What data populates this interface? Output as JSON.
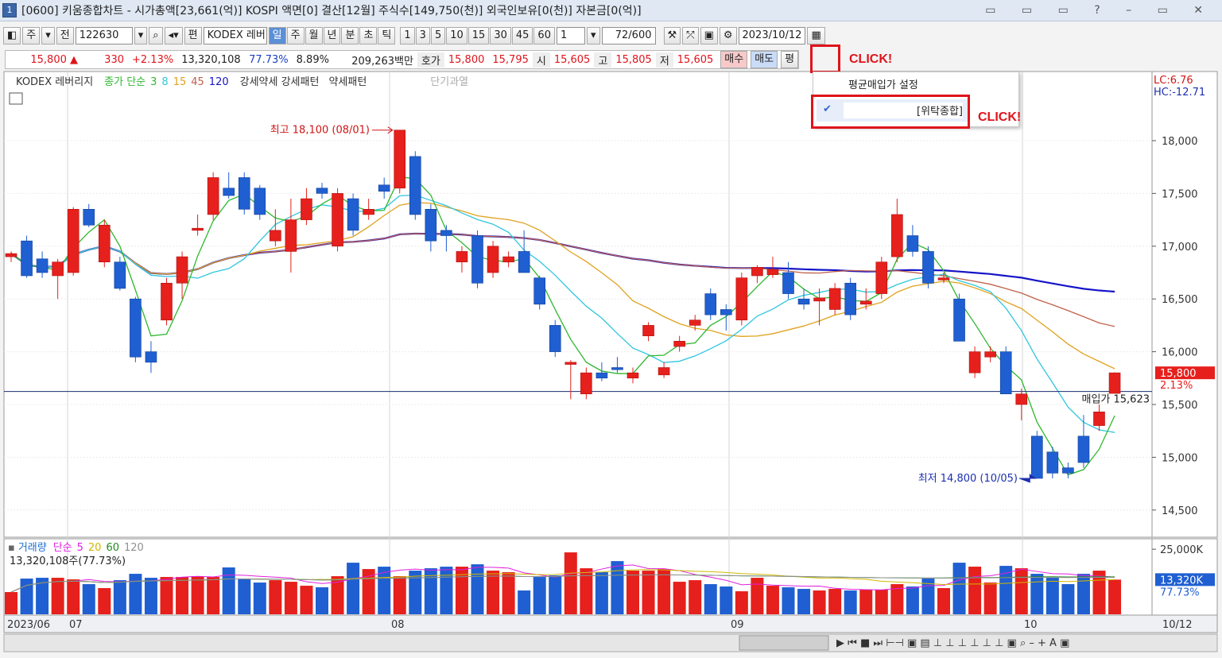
{
  "title_bar": {
    "badge": "1",
    "title": "[0600] 키움종합차트 - 시가총액[23,661(억)] KOSPI 액면[0] 결산[12월] 주식수[149,750(천)] 외국인보유[0(천)] 자본금[0(억)]"
  },
  "toolbar": {
    "period_type": "주",
    "mode": "전",
    "code": "122630",
    "fund_label": "편",
    "name": "KODEX 레버",
    "periods": [
      "일",
      "주",
      "월",
      "년",
      "분",
      "초",
      "틱"
    ],
    "minutes": [
      "1",
      "3",
      "5",
      "10",
      "15",
      "30",
      "45",
      "60"
    ],
    "multiplier": "1",
    "count": "72/600",
    "date": "2023/10/12"
  },
  "quote_bar": {
    "price": "15,800 ▲",
    "change": "330",
    "change_pct": "+2.13%",
    "volume": "13,320,108",
    "volume_ratio": "77.73%",
    "turnover": "8.89%",
    "amount": "209,263백만",
    "ask_label": "호가",
    "ask": "15,800",
    "bid": "15,795",
    "open_label": "시",
    "open": "15,605",
    "high_label": "고",
    "high": "15,805",
    "low_label": "저",
    "low": "15,605",
    "buy": "매수",
    "sell": "매도",
    "avg": "평"
  },
  "popup": {
    "title": "평균매입가 설정",
    "account": "[위탁종합]"
  },
  "annotations": {
    "click_1": "CLICK!",
    "click_2": "CLICK!"
  },
  "price_chart": {
    "type": "candlestick",
    "name": "KODEX 레버리지",
    "ma_label": "종가 단순",
    "ma": [
      {
        "period": 3,
        "color": "#2db82d"
      },
      {
        "period": 8,
        "color": "#2fc6de"
      },
      {
        "period": 15,
        "color": "#e0a21e"
      },
      {
        "period": 45,
        "color": "#c0604a"
      },
      {
        "period": 120,
        "color": "#1414c8"
      }
    ],
    "pattern_1": "강세약세 강세패턴",
    "pattern_2": "약세패턴",
    "pattern_3": "단기과열",
    "up_color": "#e6201c",
    "down_color": "#1f5fd1",
    "candles": [
      [
        16900,
        16950,
        16850,
        16930
      ],
      [
        17050,
        17100,
        16700,
        16720
      ],
      [
        16880,
        16950,
        16700,
        16750
      ],
      [
        16720,
        16880,
        16500,
        16850
      ],
      [
        16750,
        17370,
        16720,
        17350
      ],
      [
        17350,
        17400,
        17180,
        17200
      ],
      [
        16850,
        17250,
        16800,
        17200
      ],
      [
        16850,
        16900,
        16580,
        16600
      ],
      [
        16500,
        16520,
        15900,
        15950
      ],
      [
        16000,
        16100,
        15800,
        15900
      ],
      [
        16300,
        16700,
        16250,
        16650
      ],
      [
        16650,
        16950,
        16500,
        16900
      ],
      [
        17150,
        17300,
        17100,
        17170
      ],
      [
        17300,
        17700,
        17250,
        17650
      ],
      [
        17550,
        17700,
        17450,
        17480
      ],
      [
        17650,
        17700,
        17300,
        17350
      ],
      [
        17550,
        17580,
        17250,
        17300
      ],
      [
        17050,
        17350,
        17000,
        17150
      ],
      [
        16950,
        17450,
        16750,
        17250
      ],
      [
        17250,
        17550,
        17200,
        17450
      ],
      [
        17550,
        17600,
        17450,
        17500
      ],
      [
        17000,
        17550,
        16950,
        17500
      ],
      [
        17450,
        17500,
        17100,
        17150
      ],
      [
        17300,
        17450,
        17250,
        17350
      ],
      [
        17580,
        17650,
        17450,
        17520
      ],
      [
        17550,
        18100,
        17500,
        18100
      ],
      [
        17850,
        17900,
        17250,
        17300
      ],
      [
        17350,
        17400,
        16950,
        17050
      ],
      [
        17150,
        17200,
        16950,
        17100
      ],
      [
        16850,
        17000,
        16750,
        16950
      ],
      [
        17100,
        17150,
        16600,
        16650
      ],
      [
        16750,
        17050,
        16700,
        17000
      ],
      [
        16850,
        16950,
        16800,
        16900
      ],
      [
        16950,
        17150,
        16750,
        16750
      ],
      [
        16700,
        16720,
        16400,
        16450
      ],
      [
        16250,
        16300,
        15950,
        16000
      ],
      [
        15880,
        15920,
        15550,
        15900
      ],
      [
        15600,
        15850,
        15550,
        15800
      ],
      [
        15800,
        15900,
        15720,
        15750
      ],
      [
        15850,
        15950,
        15800,
        15830
      ],
      [
        15750,
        15850,
        15700,
        15800
      ],
      [
        16150,
        16280,
        16100,
        16250
      ],
      [
        15780,
        15900,
        15750,
        15850
      ],
      [
        16050,
        16150,
        16000,
        16100
      ],
      [
        16250,
        16350,
        16200,
        16300
      ],
      [
        16550,
        16600,
        16300,
        16350
      ],
      [
        16400,
        16450,
        16200,
        16350
      ],
      [
        16300,
        16750,
        16250,
        16700
      ],
      [
        16720,
        16820,
        16650,
        16800
      ],
      [
        16730,
        16900,
        16700,
        16780
      ],
      [
        16750,
        16850,
        16500,
        16550
      ],
      [
        16500,
        16600,
        16400,
        16450
      ],
      [
        16480,
        16600,
        16250,
        16510
      ],
      [
        16400,
        16650,
        16350,
        16600
      ],
      [
        16650,
        16700,
        16300,
        16350
      ],
      [
        16450,
        16600,
        16400,
        16480
      ],
      [
        16550,
        16900,
        16500,
        16850
      ],
      [
        16900,
        17450,
        16850,
        17300
      ],
      [
        17100,
        17200,
        16900,
        16950
      ],
      [
        16950,
        17000,
        16600,
        16650
      ],
      [
        16680,
        16750,
        16650,
        16700
      ],
      [
        16500,
        16550,
        16100,
        16100
      ],
      [
        15800,
        16050,
        15750,
        16000
      ],
      [
        15950,
        16050,
        15900,
        16000
      ],
      [
        16000,
        16050,
        15600,
        15600
      ],
      [
        15500,
        15650,
        15350,
        15600
      ],
      [
        15200,
        15250,
        14800,
        14800
      ],
      [
        15050,
        15100,
        14800,
        14850
      ],
      [
        14900,
        14950,
        14800,
        14850
      ],
      [
        15200,
        15400,
        14900,
        14950
      ],
      [
        15300,
        15500,
        15250,
        15430
      ],
      [
        15605,
        15805,
        15605,
        15800
      ]
    ],
    "ylim": [
      14250,
      18640
    ],
    "yticks": [
      {
        "value": 14500,
        "label": "14,500"
      },
      {
        "value": 15000,
        "label": "15,000"
      },
      {
        "value": 15500,
        "label": "15,500"
      },
      {
        "value": 16000,
        "label": "16,000"
      },
      {
        "value": 16500,
        "label": "16,500"
      },
      {
        "value": 17000,
        "label": "17,000"
      },
      {
        "value": 17500,
        "label": "17,500"
      },
      {
        "value": 18000,
        "label": "18,000"
      }
    ],
    "avg_price": {
      "value": 15623,
      "label": "매입가 15,623"
    },
    "high_note": "최고 18,100 (08/01)",
    "low_note": "최저 14,800 (10/05)",
    "lc": "LC:6.76",
    "hc": "HC:-12.71",
    "last_price": "15,800",
    "last_change": "2.13%"
  },
  "volume_chart": {
    "type": "bar",
    "legend": "거래량",
    "ma_label": "단순",
    "ma": [
      {
        "period": 5,
        "color": "#e020e0"
      },
      {
        "period": 20,
        "color": "#d0b800"
      },
      {
        "period": 60,
        "color": "#208a20"
      },
      {
        "period": 120,
        "color": "#909090"
      }
    ],
    "note": "13,320,108주(77.73%)",
    "values": [
      8540,
      13725,
      14030,
      14030,
      13420,
      11590,
      10065,
      13115,
      15555,
      14030,
      14335,
      14335,
      14640,
      14335,
      18000,
      13725,
      12200,
      13115,
      12505,
      10980,
      10370,
      14640,
      19825,
      17385,
      18300,
      14640,
      16775,
      17690,
      18300,
      18300,
      19215,
      16775,
      16165,
      9150,
      14335,
      14945,
      23790,
      17690,
      16165,
      20435,
      16775,
      16775,
      17385,
      12505,
      13115,
      11590,
      10675,
      8845,
      14030,
      10980,
      10370,
      9760,
      9150,
      9760,
      9150,
      9455,
      9455,
      11590,
      10675,
      13725,
      10065,
      19825,
      18300,
      12200,
      18605,
      17690,
      15555,
      14030,
      11590,
      15555,
      16775,
      13320
    ],
    "ylim": [
      0,
      28400
    ],
    "yticks": [
      {
        "value": 25000,
        "label": "25,000K"
      }
    ],
    "last_label": "13,320K",
    "last_ratio": "77.73%"
  },
  "date_axis": [
    "2023/06",
    "07",
    "08",
    "09",
    "10",
    "10/12"
  ]
}
